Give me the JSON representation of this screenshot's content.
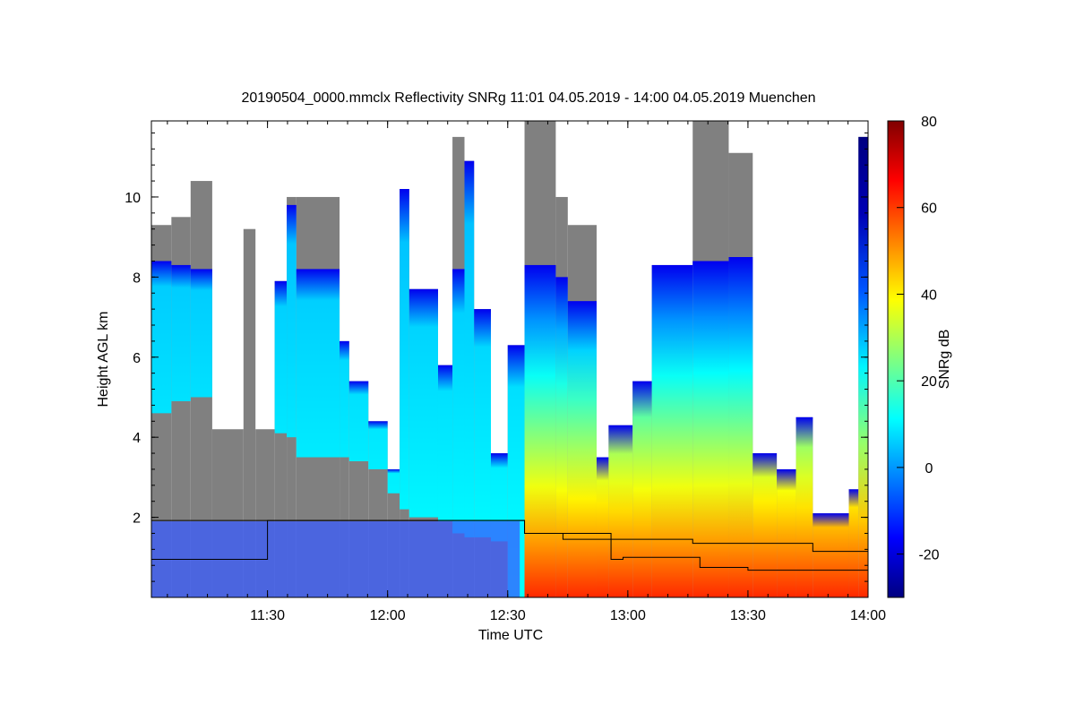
{
  "chart_data": {
    "type": "heatmap",
    "title": "20190504_0000.mmclx Reflectivity SNRg   11:01 04.05.2019 - 14:00 04.05.2019 Muenchen",
    "xlabel": "Time UTC",
    "ylabel": "Height AGL km",
    "colorbar_label": "SNRg dB",
    "xlim_hours": [
      11.0167,
      14.0
    ],
    "ylim": [
      0,
      11.9
    ],
    "x_ticks": [
      {
        "t": 11.5,
        "label": "11:30"
      },
      {
        "t": 12.0,
        "label": "12:00"
      },
      {
        "t": 12.5,
        "label": "12:30"
      },
      {
        "t": 13.0,
        "label": "13:00"
      },
      {
        "t": 13.5,
        "label": "13:30"
      },
      {
        "t": 14.0,
        "label": "14:00"
      }
    ],
    "y_ticks": [
      {
        "v": 2,
        "label": "2"
      },
      {
        "v": 4,
        "label": "4"
      },
      {
        "v": 6,
        "label": "6"
      },
      {
        "v": 8,
        "label": "8"
      },
      {
        "v": 10,
        "label": "10"
      }
    ],
    "colorbar_range": [
      -30,
      80
    ],
    "colorbar_ticks": [
      {
        "v": -20,
        "label": "-20"
      },
      {
        "v": 0,
        "label": "0"
      },
      {
        "v": 20,
        "label": "20"
      },
      {
        "v": 40,
        "label": "40"
      },
      {
        "v": 60,
        "label": "60"
      },
      {
        "v": 80,
        "label": "80"
      }
    ],
    "colormap": [
      "#000080",
      "#0000ff",
      "#0080ff",
      "#00ffff",
      "#80ff80",
      "#ffff00",
      "#ff8000",
      "#ff0000",
      "#800000"
    ],
    "noise_color": "#808080",
    "segments": [
      {
        "t0": 11.017,
        "t1": 11.1,
        "cloud": [
          4.6,
          8.4
        ],
        "noise_top": 9.3
      },
      {
        "t0": 11.1,
        "t1": 11.18,
        "cloud": [
          4.9,
          8.3
        ],
        "noise_top": 9.5
      },
      {
        "t0": 11.18,
        "t1": 11.27,
        "cloud": [
          5.0,
          8.2
        ],
        "noise_top": 10.4
      },
      {
        "t0": 11.27,
        "t1": 11.4,
        "noise_top": 4.2
      },
      {
        "t0": 11.4,
        "t1": 11.45,
        "noise_top": 9.2
      },
      {
        "t0": 11.45,
        "t1": 11.53,
        "noise_top": 4.2
      },
      {
        "t0": 11.53,
        "t1": 11.58,
        "cloud": [
          4.1,
          7.9
        ],
        "noise_top": 7.9
      },
      {
        "t0": 11.58,
        "t1": 11.62,
        "cloud": [
          4.0,
          9.8
        ],
        "noise_top": 10.0
      },
      {
        "t0": 11.62,
        "t1": 11.8,
        "cloud": [
          3.5,
          8.2
        ],
        "noise_top": 10.0
      },
      {
        "t0": 11.8,
        "t1": 11.84,
        "cloud": [
          3.5,
          6.4
        ],
        "noise_top": 6.4
      },
      {
        "t0": 11.84,
        "t1": 11.92,
        "cloud": [
          3.4,
          5.4
        ],
        "noise_top": 5.4
      },
      {
        "t0": 11.92,
        "t1": 12.0,
        "cloud": [
          3.2,
          4.4
        ],
        "noise_top": 4.4
      },
      {
        "t0": 12.0,
        "t1": 12.05,
        "cloud": [
          2.6,
          3.2
        ],
        "noise_top": 3.2
      },
      {
        "t0": 12.05,
        "t1": 12.09,
        "cloud": [
          2.2,
          10.2
        ],
        "noise_top": 10.2
      },
      {
        "t0": 12.09,
        "t1": 12.21,
        "cloud": [
          2.0,
          7.7
        ],
        "noise_top": 7.7
      },
      {
        "t0": 12.21,
        "t1": 12.27,
        "cloud": [
          1.9,
          5.8
        ],
        "noise_top": 5.8
      },
      {
        "t0": 12.27,
        "t1": 12.32,
        "cloud": [
          1.6,
          8.2
        ],
        "noise_top": 11.5
      },
      {
        "t0": 12.32,
        "t1": 12.36,
        "cloud": [
          1.5,
          10.9
        ],
        "noise_top": 10.9
      },
      {
        "t0": 12.36,
        "t1": 12.43,
        "cloud": [
          1.5,
          7.2
        ],
        "noise_top": 7.2
      },
      {
        "t0": 12.43,
        "t1": 12.5,
        "cloud": [
          1.4,
          3.6
        ],
        "noise_top": 3.6
      },
      {
        "t0": 12.5,
        "t1": 12.57,
        "cloud": [
          0.0,
          6.3
        ],
        "noise_top": 6.3
      },
      {
        "t0": 12.57,
        "t1": 12.7,
        "cloud": [
          0.0,
          8.3
        ],
        "noise_top": 11.9
      },
      {
        "t0": 12.7,
        "t1": 12.75,
        "cloud": [
          0.0,
          8.0
        ],
        "noise_top": 10.0
      },
      {
        "t0": 12.75,
        "t1": 12.87,
        "cloud": [
          0.0,
          7.4
        ],
        "noise_top": 9.3
      },
      {
        "t0": 12.87,
        "t1": 12.92,
        "cloud": [
          0.0,
          3.5
        ],
        "noise_top": 3.5
      },
      {
        "t0": 12.92,
        "t1": 13.02,
        "cloud": [
          0.0,
          4.3
        ],
        "noise_top": 4.3
      },
      {
        "t0": 13.02,
        "t1": 13.1,
        "cloud": [
          0.0,
          5.4
        ],
        "noise_top": 5.4
      },
      {
        "t0": 13.1,
        "t1": 13.27,
        "cloud": [
          0.0,
          8.3
        ],
        "noise_top": 8.3
      },
      {
        "t0": 13.27,
        "t1": 13.42,
        "cloud": [
          0.0,
          8.4
        ],
        "noise_top": 11.9
      },
      {
        "t0": 13.42,
        "t1": 13.52,
        "cloud": [
          0.0,
          8.5
        ],
        "noise_top": 11.1
      },
      {
        "t0": 13.52,
        "t1": 13.62,
        "cloud": [
          0.0,
          3.6
        ],
        "noise_top": 3.6
      },
      {
        "t0": 13.62,
        "t1": 13.7,
        "cloud": [
          0.0,
          3.2
        ],
        "noise_top": 3.2
      },
      {
        "t0": 13.7,
        "t1": 13.77,
        "cloud": [
          0.0,
          4.5
        ],
        "noise_top": 4.5
      },
      {
        "t0": 13.77,
        "t1": 13.92,
        "cloud": [
          0.0,
          2.1
        ],
        "noise_top": 2.1
      },
      {
        "t0": 13.92,
        "t1": 13.96,
        "cloud": [
          0.0,
          2.7
        ],
        "noise_top": 2.7
      },
      {
        "t0": 13.96,
        "t1": 14.0,
        "cloud": [
          0.0,
          11.5
        ],
        "noise_top": 11.5
      }
    ],
    "series": [
      {
        "name": "upper line",
        "step_t": [
          11.017,
          11.5,
          12.57,
          12.73,
          13.27,
          13.77,
          14.0
        ],
        "step_h": [
          1.92,
          1.92,
          1.6,
          1.45,
          1.35,
          1.15
        ]
      },
      {
        "name": "lower line",
        "step_t": [
          11.017,
          11.5,
          12.57,
          12.93,
          12.98,
          13.3,
          13.5,
          14.0
        ],
        "step_h": [
          0.95,
          1.92,
          1.6,
          0.95,
          1.0,
          0.75,
          0.68
        ]
      }
    ]
  }
}
